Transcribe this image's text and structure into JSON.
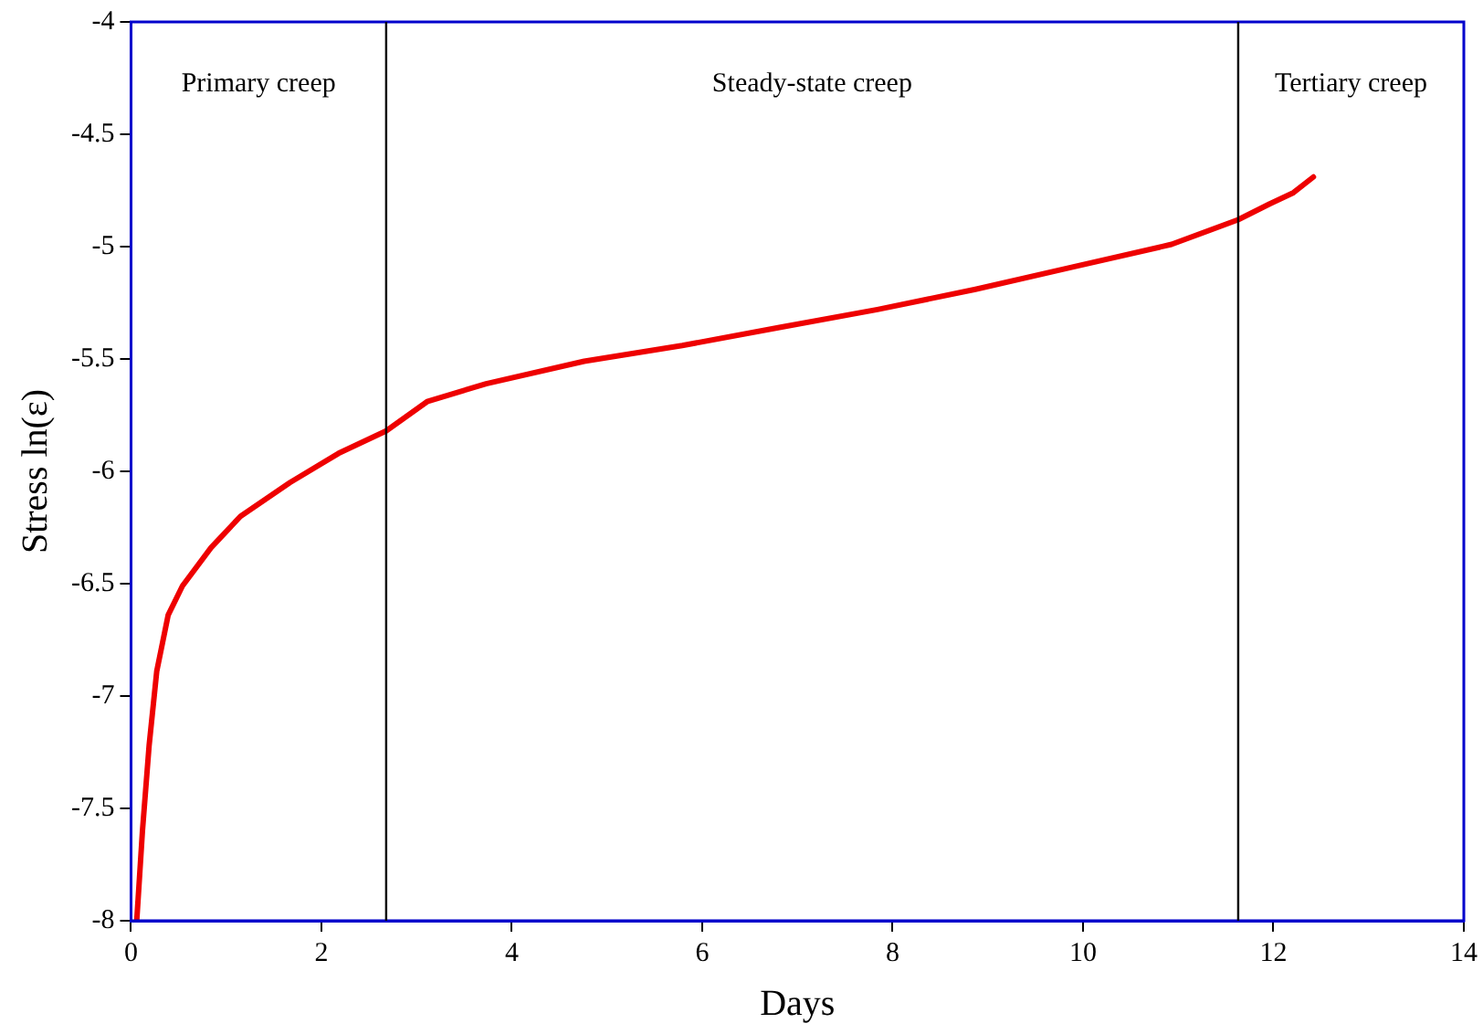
{
  "chart_data": {
    "type": "line",
    "xlabel": "Days",
    "ylabel": "Stress ln(ε)",
    "x": [
      0.06,
      0.12,
      0.19,
      0.27,
      0.39,
      0.54,
      0.84,
      1.15,
      1.67,
      2.18,
      2.68,
      3.11,
      3.73,
      4.76,
      5.79,
      6.81,
      7.84,
      8.87,
      9.9,
      10.93,
      11.63,
      11.96,
      12.21,
      12.42
    ],
    "series": [
      {
        "color": "#ee0000",
        "values": [
          -8,
          -7.6,
          -7.22,
          -6.89,
          -6.64,
          -6.51,
          -6.34,
          -6.2,
          -6.05,
          -5.92,
          -5.82,
          -5.69,
          -5.61,
          -5.51,
          -5.44,
          -5.36,
          -5.28,
          -5.19,
          -5.09,
          -4.99,
          -4.88,
          -4.81,
          -4.76,
          -4.69
        ]
      }
    ],
    "xlim": [
      0,
      14
    ],
    "xticks": [
      0,
      2,
      4,
      6,
      8,
      10,
      12,
      14
    ],
    "ylim": [
      -8,
      -4
    ],
    "yticks": [
      -8,
      -7.5,
      -7,
      -6.5,
      -6,
      -5.5,
      -5,
      -4.5,
      -4
    ],
    "ref_lines": [
      {
        "axis": "x",
        "value": 2.68,
        "color": "#000000"
      },
      {
        "axis": "x",
        "value": 11.63,
        "color": "#000000"
      }
    ],
    "annotations": [
      "Primary creep",
      "Steady-state creep",
      "Tertiary creep"
    ],
    "grid": false,
    "legend": false,
    "marker": "none",
    "line_style": "solid"
  }
}
